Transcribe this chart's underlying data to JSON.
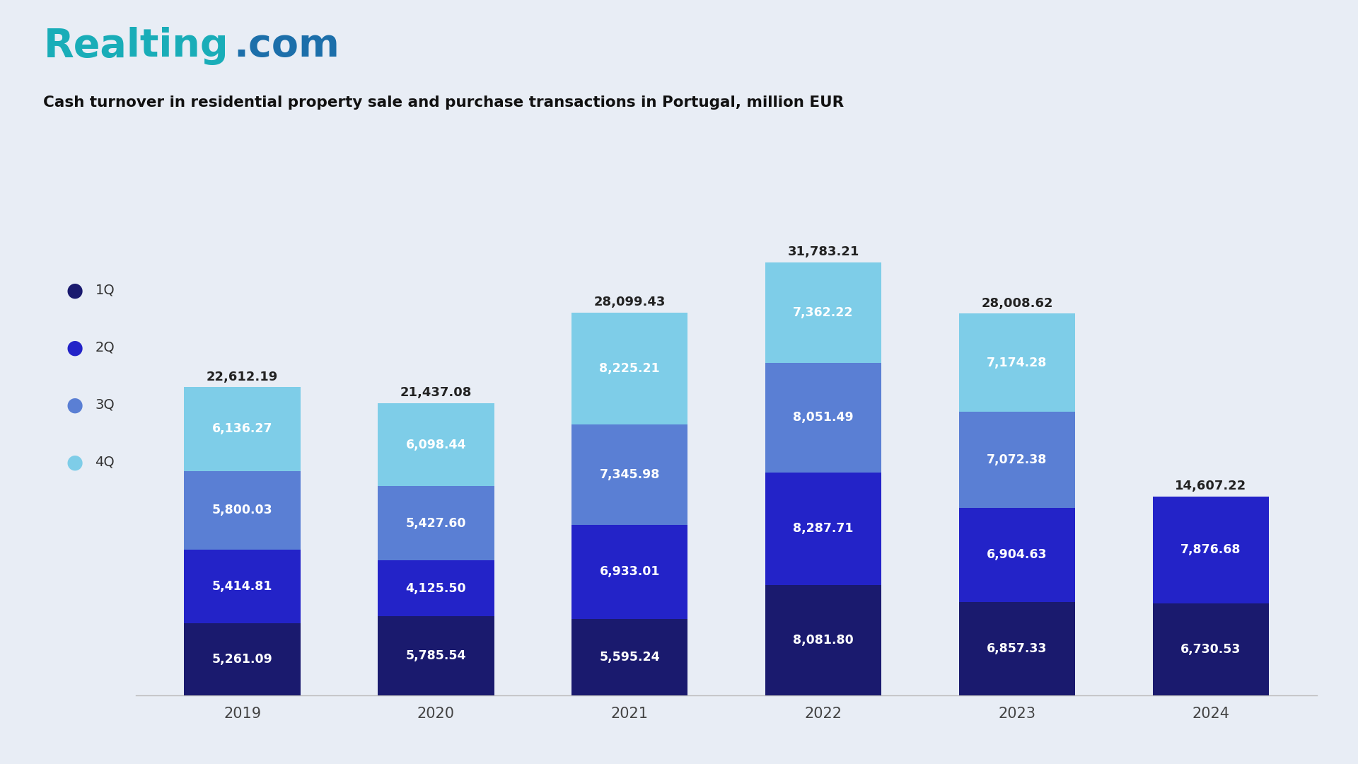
{
  "title": "Cash turnover in residential property sale and purchase transactions in Portugal, million EUR",
  "years": [
    "2019",
    "2020",
    "2021",
    "2022",
    "2023",
    "2024"
  ],
  "quarters": [
    "1Q",
    "2Q",
    "3Q",
    "4Q"
  ],
  "colors": {
    "1Q": "#1a1a6e",
    "2Q": "#2323c8",
    "3Q": "#5a7fd4",
    "4Q": "#7ecde8"
  },
  "data": {
    "1Q": [
      5261.09,
      5785.54,
      5595.24,
      8081.8,
      6857.33,
      6730.53
    ],
    "2Q": [
      5414.81,
      4125.5,
      6933.01,
      8287.71,
      6904.63,
      7876.68
    ],
    "3Q": [
      5800.03,
      5427.6,
      7345.98,
      8051.49,
      7072.38,
      0.0
    ],
    "4Q": [
      6136.27,
      6098.44,
      8225.21,
      7362.22,
      7174.28,
      0.0
    ]
  },
  "totals": [
    "22,612.19",
    "21,437.08",
    "28,099.43",
    "31,783.21",
    "28,008.62",
    "14,607.22"
  ],
  "totals_raw": [
    22612.19,
    21437.08,
    28099.43,
    31783.21,
    28008.62,
    14607.22
  ],
  "background_color": "#e8edf5",
  "bar_width": 0.6,
  "logo_teal": "#19adb8",
  "logo_blue": "#1c6faa",
  "logo_text_realting": "Realting",
  "logo_text_dotcom": ".com"
}
